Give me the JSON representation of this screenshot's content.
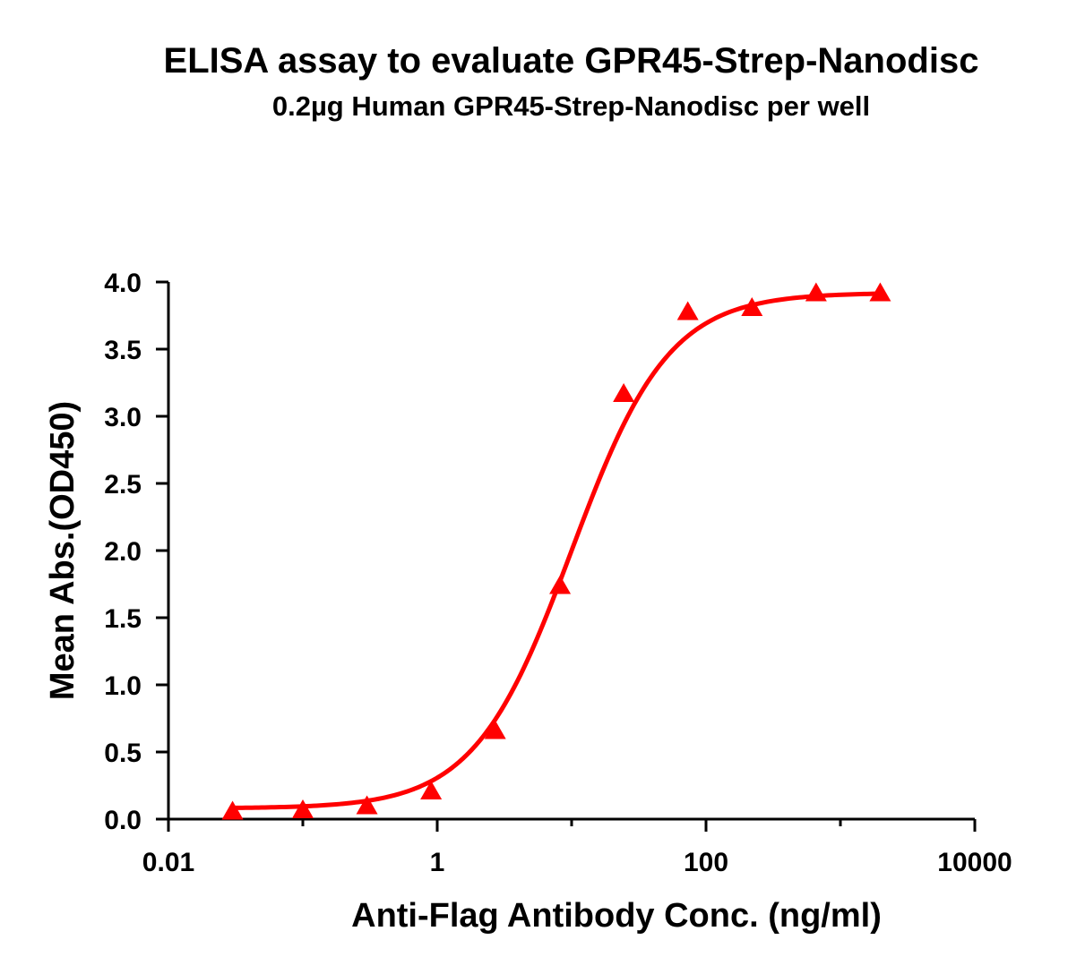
{
  "chart_data": {
    "type": "scatter",
    "title": "ELISA assay to evaluate GPR45-Strep-Nanodisc",
    "subtitle": "0.2µg Human GPR45-Strep-Nanodisc per well",
    "xlabel": "Anti-Flag Antibody Conc. (ng/ml)",
    "ylabel": "Mean Abs.(OD450)",
    "x_scale": "log",
    "xlim": [
      0.01,
      10000
    ],
    "ylim": [
      0,
      4.0
    ],
    "x_ticks": [
      0.01,
      1,
      100,
      10000
    ],
    "x_tick_labels": [
      "0.01",
      "1",
      "100",
      "10000"
    ],
    "y_ticks": [
      0.0,
      0.5,
      1.0,
      1.5,
      2.0,
      2.5,
      3.0,
      3.5,
      4.0
    ],
    "y_tick_labels": [
      "0.0",
      "0.5",
      "1.0",
      "1.5",
      "2.0",
      "2.5",
      "3.0",
      "3.5",
      "4.0"
    ],
    "grid": false,
    "series": [
      {
        "marker": "triangle",
        "color": "#ff0000",
        "x": [
          0.03,
          0.1,
          0.3,
          0.9,
          2.7,
          8.2,
          24.4,
          73.2,
          219.7,
          659.2,
          1977.5
        ],
        "y": [
          0.06,
          0.07,
          0.1,
          0.21,
          0.66,
          1.74,
          3.17,
          3.78,
          3.81,
          3.92,
          3.92
        ]
      }
    ],
    "fit_curve": {
      "color": "#ff0000",
      "model": "4PL",
      "bottom": 0.08,
      "top": 3.92,
      "ec50": 10,
      "hill": 1.2
    }
  }
}
